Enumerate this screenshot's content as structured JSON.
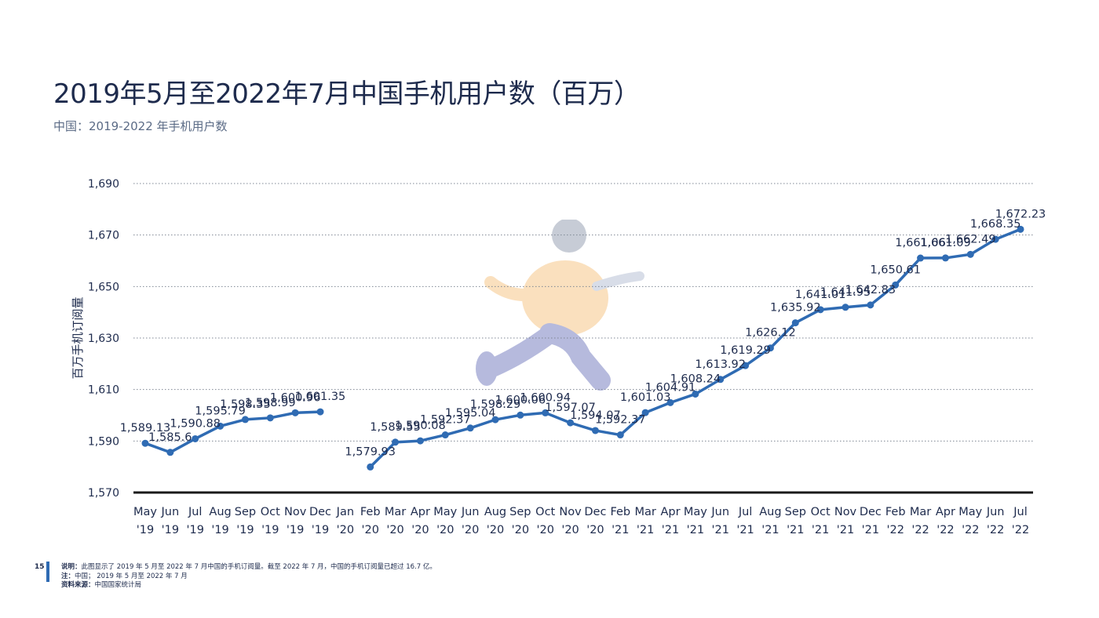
{
  "header": {
    "title": "2019年5月至2022年7月中国手机用户数（百万）",
    "subtitle": "中国：2019-2022 年手机用户数"
  },
  "footer": {
    "page_number": "15",
    "note1_label": "说明：",
    "note1_text": "此图显示了 2019 年 5 月至 2022 年 7 月中国的手机订阅量。截至 2022 年 7 月，中国的手机订阅量已超过 16.7 亿。",
    "note2_label": "注：",
    "note2_text": "中国； 2019 年 5 月至 2022 年 7 月",
    "note3_label": "资料来源：",
    "note3_text": "中国国家统计局"
  },
  "colors": {
    "line": "#2f6bb3",
    "text": "#1e2b4d",
    "grid": "#7f8794"
  },
  "chart_data": {
    "type": "line",
    "title": "2019年5月至2022年7月中国手机用户数（百万）",
    "ylabel": "百万手机订阅量",
    "xlabel": "",
    "ylim": [
      1570,
      1690
    ],
    "yticks": [
      1570,
      1590,
      1610,
      1630,
      1650,
      1670,
      1690
    ],
    "ytick_labels": [
      "1,570",
      "1,590",
      "1,610",
      "1,630",
      "1,650",
      "1,670",
      "1,690"
    ],
    "grid": "horizontal-dotted",
    "categories": [
      [
        "May",
        "'19"
      ],
      [
        "Jun",
        "'19"
      ],
      [
        "Jul",
        "'19"
      ],
      [
        "Aug",
        "'19"
      ],
      [
        "Sep",
        "'19"
      ],
      [
        "Oct",
        "'19"
      ],
      [
        "Nov",
        "'19"
      ],
      [
        "Dec",
        "'19"
      ],
      [
        "Jan",
        "'20"
      ],
      [
        "Feb",
        "'20"
      ],
      [
        "Mar",
        "'20"
      ],
      [
        "Apr",
        "'20"
      ],
      [
        "May",
        "'20"
      ],
      [
        "Jun",
        "'20"
      ],
      [
        "Aug",
        "'20"
      ],
      [
        "Sep",
        "'20"
      ],
      [
        "Oct",
        "'20"
      ],
      [
        "Nov",
        "'20"
      ],
      [
        "Dec",
        "'20"
      ],
      [
        "Feb",
        "'21"
      ],
      [
        "Mar",
        "'21"
      ],
      [
        "Apr",
        "'21"
      ],
      [
        "May",
        "'21"
      ],
      [
        "Jun",
        "'21"
      ],
      [
        "Jul",
        "'21"
      ],
      [
        "Aug",
        "'21"
      ],
      [
        "Sep",
        "'21"
      ],
      [
        "Oct",
        "'21"
      ],
      [
        "Nov",
        "'21"
      ],
      [
        "Dec",
        "'21"
      ],
      [
        "Feb",
        "'22"
      ],
      [
        "Mar",
        "'22"
      ],
      [
        "Apr",
        "'22"
      ],
      [
        "May",
        "'22"
      ],
      [
        "Jun",
        "'22"
      ],
      [
        "Jul",
        "'22"
      ]
    ],
    "values": [
      1589.13,
      1585.6,
      1590.88,
      1595.79,
      1598.35,
      1598.99,
      1600.96,
      1601.35,
      null,
      1579.93,
      1589.55,
      1590.08,
      1592.37,
      1595.04,
      1598.29,
      1600.06,
      1600.94,
      1597.07,
      1594.07,
      1592.37,
      1601.03,
      1604.91,
      1608.24,
      1613.92,
      1619.29,
      1626.12,
      1635.92,
      1641.01,
      1641.95,
      1642.83,
      1650.61,
      1661.06,
      1661.09,
      1662.49,
      1668.35,
      1672.23
    ],
    "value_labels": [
      "1,589.13",
      "1,585.6",
      "1,590.88",
      "1,595.79",
      "1,598.35",
      "1,598.99",
      "1,600.96",
      "1,601.35",
      "",
      "1,579.93",
      "1,589.55",
      "1,590.08",
      "1,592.37",
      "1,595.04",
      "1,598.29",
      "1,600.06",
      "1,600.94",
      "1,597.07",
      "1,594.07",
      "1,592.37",
      "1,601.03",
      "1,604.91",
      "1,608.24",
      "1,613.92",
      "1,619.29",
      "1,626.12",
      "1,635.92",
      "1,641.01",
      "1,641.95",
      "1,642.83",
      "1,650.61",
      "1,661.06",
      "1,661.09",
      "1,662.49",
      "1,668.35",
      "1,672.23"
    ]
  }
}
